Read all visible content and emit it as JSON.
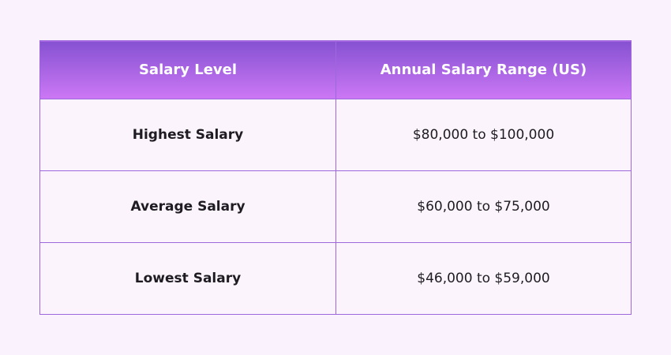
{
  "table": {
    "headers": [
      "Salary Level",
      "Annual Salary Range (US)"
    ],
    "rows": [
      {
        "level": "Highest Salary",
        "range": "$80,000 to $100,000"
      },
      {
        "level": "Average Salary",
        "range": "$60,000 to $75,000"
      },
      {
        "level": "Lowest Salary",
        "range": "$46,000 to $59,000"
      }
    ]
  },
  "colors": {
    "header_top": "#8552d2",
    "header_bottom": "#cd78f5",
    "border": "#9d68dc",
    "background": "#faf3fd"
  }
}
